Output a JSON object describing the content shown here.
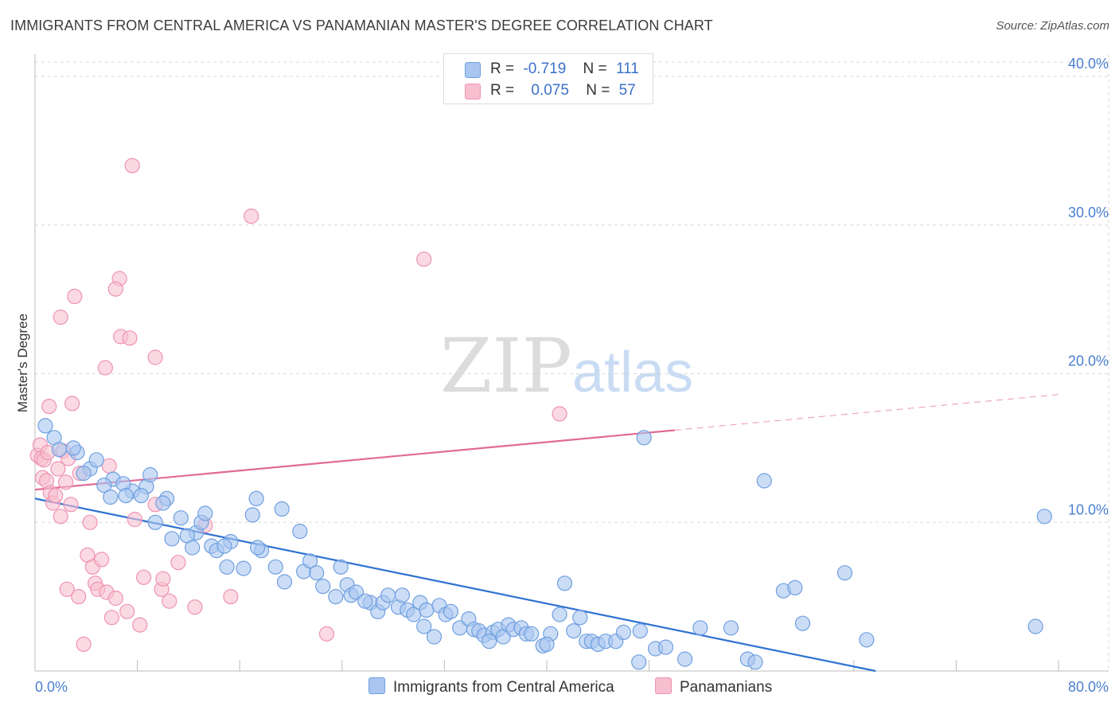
{
  "title": "IMMIGRANTS FROM CENTRAL AMERICA VS PANAMANIAN MASTER'S DEGREE CORRELATION CHART",
  "source": "Source: ZipAtlas.com",
  "watermark": {
    "zip": "ZIP",
    "atlas": "atlas"
  },
  "legend": {
    "r_label": "R =",
    "n_label": "N =",
    "rows": [
      {
        "r": "-0.719",
        "n": "111"
      },
      {
        "r": "0.075",
        "n": "57"
      }
    ]
  },
  "colors": {
    "blue_fill": "#a9c6f0",
    "blue_stroke": "#6f9fe0",
    "blue_line": "#2e72d2",
    "pink_fill": "#f7bfd0",
    "pink_stroke": "#ef93b0",
    "pink_line": "#e26a94",
    "tick_text": "#4a7fd0",
    "grid": "#d8d8d8"
  },
  "chart_data": {
    "type": "scatter",
    "title": "IMMIGRANTS FROM CENTRAL AMERICA VS PANAMANIAN MASTER'S DEGREE CORRELATION CHART",
    "xlabel": "",
    "ylabel": "Master's Degree",
    "xlim": [
      0,
      80
    ],
    "ylim": [
      0,
      41.5
    ],
    "x_tick_labels": [
      "0.0%",
      "80.0%"
    ],
    "y_ticks": [
      10,
      20,
      30,
      40
    ],
    "y_tick_labels": [
      "10.0%",
      "20.0%",
      "30.0%",
      "40.0%"
    ],
    "grid": true,
    "legend_position": "top-center",
    "series": [
      {
        "name": "Immigrants from Central America",
        "color": "#a9c6f0",
        "trend": {
          "x": [
            0,
            65.7
          ],
          "y": [
            11.6,
            0
          ]
        },
        "points": [
          [
            0.8,
            16.5
          ],
          [
            1.5,
            15.7
          ],
          [
            1.9,
            14.9
          ],
          [
            3.3,
            14.7
          ],
          [
            4.3,
            13.6
          ],
          [
            4.8,
            14.2
          ],
          [
            3.8,
            13.3
          ],
          [
            6.1,
            12.9
          ],
          [
            5.4,
            12.5
          ],
          [
            7.6,
            12.1
          ],
          [
            8.7,
            12.4
          ],
          [
            6.9,
            12.6
          ],
          [
            8.3,
            11.8
          ],
          [
            7.1,
            11.8
          ],
          [
            9.0,
            13.2
          ],
          [
            10.3,
            11.6
          ],
          [
            10.0,
            11.3
          ],
          [
            9.4,
            10.0
          ],
          [
            11.4,
            10.3
          ],
          [
            12.6,
            9.3
          ],
          [
            13.0,
            10.0
          ],
          [
            13.3,
            10.6
          ],
          [
            10.7,
            8.9
          ],
          [
            11.9,
            9.1
          ],
          [
            13.8,
            8.4
          ],
          [
            14.2,
            8.1
          ],
          [
            15.3,
            8.7
          ],
          [
            14.8,
            8.4
          ],
          [
            17.0,
            10.5
          ],
          [
            17.3,
            11.6
          ],
          [
            19.3,
            10.9
          ],
          [
            17.7,
            8.1
          ],
          [
            17.4,
            8.3
          ],
          [
            15.0,
            7.0
          ],
          [
            16.3,
            6.9
          ],
          [
            18.8,
            7.0
          ],
          [
            19.5,
            6.0
          ],
          [
            21.0,
            6.7
          ],
          [
            21.5,
            7.4
          ],
          [
            22.0,
            6.6
          ],
          [
            22.5,
            5.7
          ],
          [
            23.9,
            7.0
          ],
          [
            23.5,
            5.0
          ],
          [
            24.4,
            5.8
          ],
          [
            24.7,
            5.1
          ],
          [
            25.1,
            5.3
          ],
          [
            26.2,
            4.6
          ],
          [
            26.8,
            4.0
          ],
          [
            27.2,
            4.6
          ],
          [
            27.6,
            5.1
          ],
          [
            28.4,
            4.3
          ],
          [
            28.7,
            5.1
          ],
          [
            29.1,
            4.1
          ],
          [
            29.6,
            3.8
          ],
          [
            30.1,
            4.6
          ],
          [
            30.6,
            4.1
          ],
          [
            30.4,
            3.0
          ],
          [
            31.2,
            2.3
          ],
          [
            31.6,
            4.4
          ],
          [
            32.1,
            3.8
          ],
          [
            32.5,
            4.0
          ],
          [
            33.2,
            2.9
          ],
          [
            33.9,
            3.5
          ],
          [
            34.3,
            2.8
          ],
          [
            34.7,
            2.7
          ],
          [
            35.1,
            2.4
          ],
          [
            35.8,
            2.6
          ],
          [
            36.2,
            2.8
          ],
          [
            36.6,
            2.3
          ],
          [
            37.0,
            3.1
          ],
          [
            37.4,
            2.8
          ],
          [
            38.0,
            2.9
          ],
          [
            38.4,
            2.5
          ],
          [
            38.8,
            2.5
          ],
          [
            39.7,
            1.7
          ],
          [
            40.3,
            2.5
          ],
          [
            41.0,
            3.8
          ],
          [
            41.4,
            5.9
          ],
          [
            42.1,
            2.7
          ],
          [
            42.6,
            3.6
          ],
          [
            43.1,
            2.0
          ],
          [
            43.5,
            2.0
          ],
          [
            44.0,
            1.8
          ],
          [
            44.6,
            2.0
          ],
          [
            45.4,
            2.0
          ],
          [
            46.0,
            2.6
          ],
          [
            47.3,
            2.7
          ],
          [
            47.2,
            0.6
          ],
          [
            48.5,
            1.5
          ],
          [
            49.3,
            1.6
          ],
          [
            50.8,
            0.8
          ],
          [
            54.4,
            2.9
          ],
          [
            55.7,
            0.8
          ],
          [
            56.3,
            0.6
          ],
          [
            58.5,
            5.4
          ],
          [
            59.4,
            5.6
          ],
          [
            60.0,
            3.2
          ],
          [
            63.3,
            6.6
          ],
          [
            65.0,
            2.1
          ],
          [
            47.6,
            15.7
          ],
          [
            57.0,
            12.8
          ],
          [
            78.2,
            3.0
          ],
          [
            78.9,
            10.4
          ],
          [
            52.0,
            2.9
          ],
          [
            5.9,
            11.7
          ],
          [
            3.0,
            15.0
          ],
          [
            12.3,
            8.3
          ],
          [
            20.7,
            9.4
          ],
          [
            25.8,
            4.7
          ],
          [
            35.5,
            2.0
          ],
          [
            40.0,
            1.8
          ]
        ]
      },
      {
        "name": "Panamanians",
        "color": "#f7bfd0",
        "trend": {
          "x": [
            0,
            50.0
          ],
          "y": [
            12.2,
            16.2
          ]
        },
        "trend_extension": {
          "x": [
            50.0,
            80.0
          ],
          "y": [
            16.2,
            18.6
          ]
        },
        "points": [
          [
            0.2,
            14.5
          ],
          [
            0.4,
            15.2
          ],
          [
            0.5,
            14.3
          ],
          [
            0.7,
            14.2
          ],
          [
            0.6,
            13.0
          ],
          [
            0.9,
            12.8
          ],
          [
            1.2,
            12.0
          ],
          [
            1.1,
            17.8
          ],
          [
            1.4,
            11.3
          ],
          [
            1.6,
            11.8
          ],
          [
            1.8,
            13.6
          ],
          [
            2.0,
            10.4
          ],
          [
            2.2,
            14.8
          ],
          [
            2.4,
            12.7
          ],
          [
            2.6,
            14.3
          ],
          [
            2.8,
            11.2
          ],
          [
            2.0,
            23.8
          ],
          [
            3.1,
            25.2
          ],
          [
            2.9,
            18.0
          ],
          [
            4.3,
            10.0
          ],
          [
            4.1,
            7.8
          ],
          [
            4.5,
            7.0
          ],
          [
            4.7,
            5.9
          ],
          [
            5.2,
            7.5
          ],
          [
            4.9,
            5.5
          ],
          [
            5.6,
            5.3
          ],
          [
            6.3,
            4.9
          ],
          [
            6.0,
            3.6
          ],
          [
            6.7,
            22.5
          ],
          [
            7.6,
            34.0
          ],
          [
            6.6,
            26.4
          ],
          [
            6.3,
            25.7
          ],
          [
            7.4,
            22.4
          ],
          [
            5.5,
            20.4
          ],
          [
            9.4,
            21.1
          ],
          [
            7.2,
            4.0
          ],
          [
            7.8,
            10.2
          ],
          [
            8.5,
            6.3
          ],
          [
            8.2,
            3.1
          ],
          [
            9.4,
            11.2
          ],
          [
            9.9,
            5.5
          ],
          [
            10.0,
            6.2
          ],
          [
            10.5,
            4.7
          ],
          [
            11.2,
            7.3
          ],
          [
            12.5,
            4.3
          ],
          [
            13.3,
            9.8
          ],
          [
            15.3,
            5.0
          ],
          [
            16.9,
            30.6
          ],
          [
            22.8,
            2.5
          ],
          [
            30.4,
            27.7
          ],
          [
            41.0,
            17.3
          ],
          [
            3.8,
            1.8
          ],
          [
            5.8,
            13.8
          ],
          [
            3.4,
            5.0
          ],
          [
            1.0,
            14.7
          ],
          [
            2.5,
            5.5
          ],
          [
            3.5,
            13.3
          ]
        ]
      }
    ]
  }
}
